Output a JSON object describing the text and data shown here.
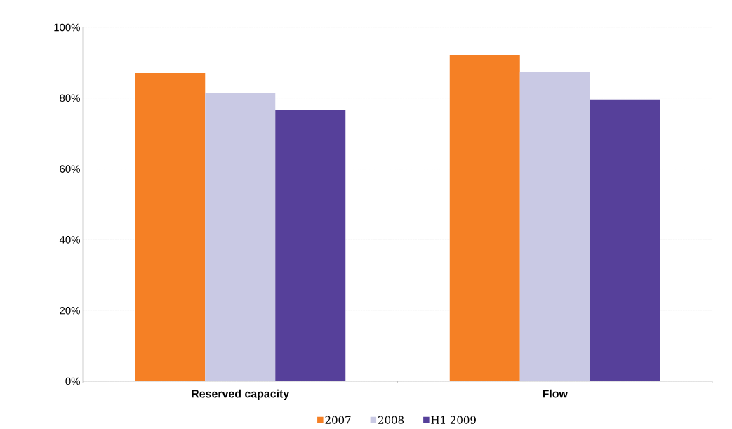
{
  "chart_data": {
    "type": "bar",
    "categories": [
      "Reserved capacity",
      "Flow"
    ],
    "series": [
      {
        "name": "2007",
        "color": "#f58025",
        "values": [
          87.1,
          92.1
        ]
      },
      {
        "name": "2008",
        "color": "#c9c9e4",
        "values": [
          81.5,
          87.5
        ]
      },
      {
        "name": "H1 2009",
        "color": "#56409a",
        "values": [
          76.8,
          79.6
        ]
      }
    ],
    "ylim": [
      0,
      100
    ],
    "yticks": [
      {
        "value": 0,
        "label": "0%"
      },
      {
        "value": 20,
        "label": "20%"
      },
      {
        "value": 40,
        "label": "40%"
      },
      {
        "value": 60,
        "label": "60%"
      },
      {
        "value": 80,
        "label": "80%"
      },
      {
        "value": 100,
        "label": "100%"
      }
    ],
    "grid": "y",
    "legend": "bottom"
  }
}
